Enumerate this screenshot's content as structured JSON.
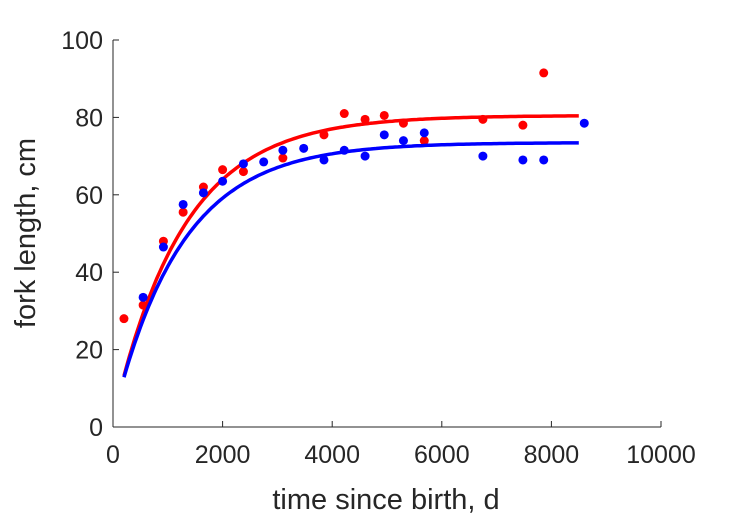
{
  "chart_data": {
    "type": "scatter",
    "xlabel": "time since birth, d",
    "ylabel": "fork length, cm",
    "xlim": [
      0,
      10000
    ],
    "ylim": [
      0,
      100
    ],
    "xticks": [
      "0",
      "2000",
      "4000",
      "6000",
      "8000",
      "10000"
    ],
    "yticks": [
      "0",
      "20",
      "40",
      "60",
      "80",
      "100"
    ],
    "grid": false,
    "series": [
      {
        "color": "#ff0000",
        "points": [
          [
            200,
            28
          ],
          [
            550,
            31.5
          ],
          [
            920,
            48
          ],
          [
            1280,
            55.5
          ],
          [
            1650,
            62
          ],
          [
            2000,
            66.5
          ],
          [
            2380,
            66
          ],
          [
            3100,
            69.5
          ],
          [
            3850,
            75.5
          ],
          [
            4220,
            81
          ],
          [
            4600,
            79.5
          ],
          [
            4950,
            80.5
          ],
          [
            5300,
            78.5
          ],
          [
            5680,
            74
          ],
          [
            6750,
            79.5
          ],
          [
            7480,
            78
          ],
          [
            7860,
            91.5
          ]
        ],
        "fit": {
          "model": "von Bertalanffy",
          "Linf": 80.5,
          "k": 0.00078,
          "t0": -30,
          "t_range": [
            200,
            8500
          ]
        }
      },
      {
        "color": "#0000ff",
        "points": [
          [
            550,
            33.5
          ],
          [
            920,
            46.5
          ],
          [
            1280,
            57.5
          ],
          [
            1650,
            60.5
          ],
          [
            2000,
            63.5
          ],
          [
            2380,
            68
          ],
          [
            2750,
            68.5
          ],
          [
            3100,
            71.5
          ],
          [
            3480,
            72
          ],
          [
            3850,
            69
          ],
          [
            4220,
            71.5
          ],
          [
            4600,
            70
          ],
          [
            4950,
            75.5
          ],
          [
            5300,
            74
          ],
          [
            5680,
            76
          ],
          [
            6750,
            70
          ],
          [
            7480,
            69
          ],
          [
            7860,
            69
          ],
          [
            8600,
            78.5
          ]
        ],
        "fit": {
          "model": "von Bertalanffy",
          "Linf": 73.5,
          "k": 0.0008,
          "t0": -40,
          "t_range": [
            200,
            8500
          ]
        }
      }
    ]
  }
}
